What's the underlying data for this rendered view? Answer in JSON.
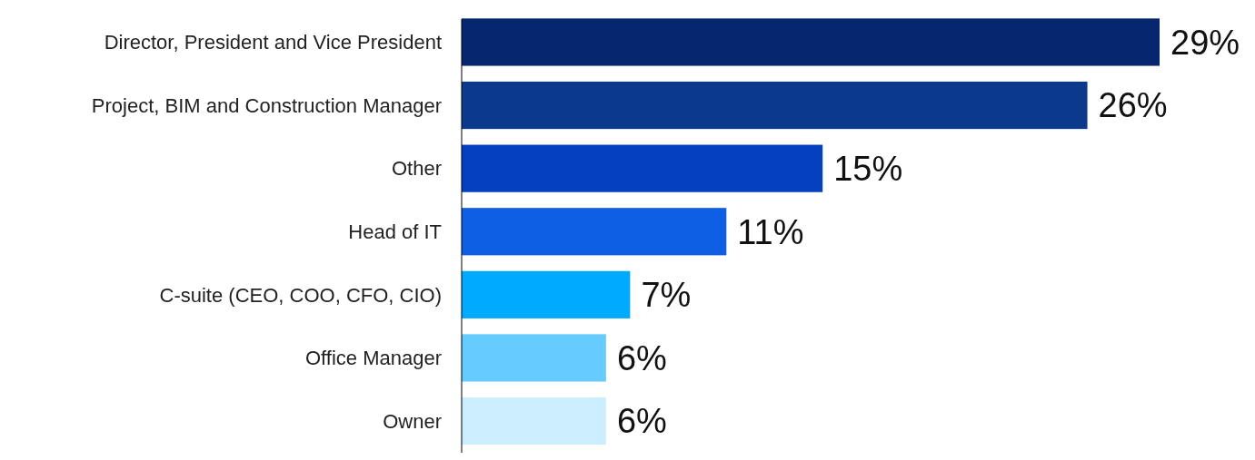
{
  "chart_data": {
    "type": "bar",
    "orientation": "horizontal",
    "categories": [
      "Director, President and Vice President",
      "Project, BIM and Construction Manager",
      "Other",
      "Head of IT",
      "C-suite (CEO, COO, CFO, CIO)",
      "Office Manager",
      "Owner"
    ],
    "values": [
      29,
      26,
      15,
      11,
      7,
      6,
      6
    ],
    "value_labels": [
      "29%",
      "26%",
      "15%",
      "11%",
      "7%",
      "6%",
      "6%"
    ],
    "colors": [
      "#06266f",
      "#0b3a8c",
      "#0540c0",
      "#0e5fe4",
      "#00aaff",
      "#66ccff",
      "#cceeff"
    ]
  }
}
